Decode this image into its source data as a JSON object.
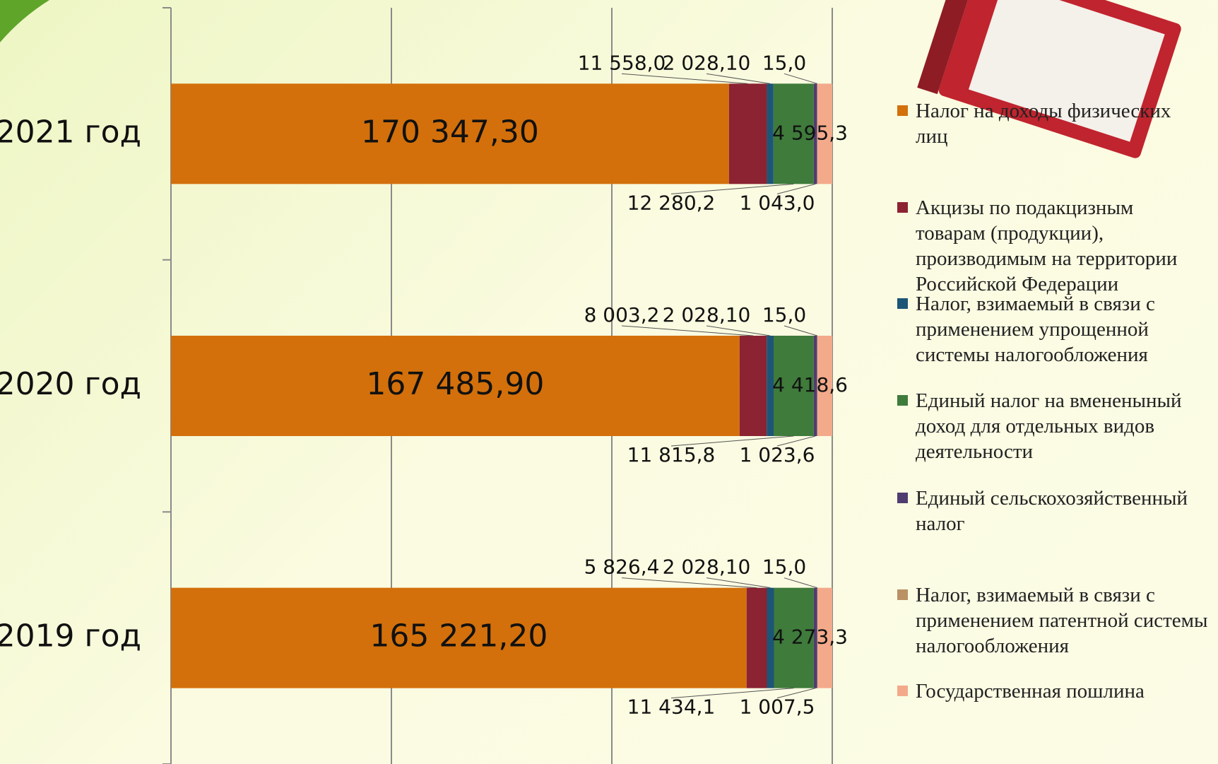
{
  "chart_data": {
    "type": "bar",
    "orientation": "horizontal",
    "stacked": "percent",
    "categories": [
      "2019 год",
      "2020 год",
      "2021 год"
    ],
    "series": [
      {
        "name": "Налог на доходы физических лиц",
        "color": "#d3700b",
        "values": [
          165221.2,
          167485.9,
          170347.3
        ],
        "value_labels": [
          "165 221,20",
          "167 485,90",
          "170 347,30"
        ]
      },
      {
        "name": "Акцизы по подакцизным товарам (продукции), производимым на территории Российской Федерации",
        "color": "#8b2332",
        "values": [
          5826.4,
          8003.2,
          11558
        ],
        "value_labels": [
          "5 826,4",
          "8 003,2",
          "11 558,0"
        ]
      },
      {
        "name": "Налог, взимаемый в связи с применением упрощенной системы налогообложения",
        "color": "#1d5577",
        "values": [
          2028.1,
          2028.1,
          2028.1
        ],
        "value_labels": [
          "2 028,10",
          "2 028,10",
          "2 028,10"
        ]
      },
      {
        "name": "Единый налог на вмененыный доход для отдельных видов деятельности",
        "color": "#3f7b3b",
        "values": [
          11434.1,
          11815.8,
          12280.2
        ],
        "value_labels": [
          "11 434,1",
          "11 815,8",
          "12 280,2"
        ]
      },
      {
        "name": "Единый сельскохозяйственный налог",
        "color": "#503d6f",
        "values": [
          1007.5,
          1023.6,
          1043
        ],
        "value_labels": [
          "1 007,5",
          "1 023,6",
          "1 043,0"
        ]
      },
      {
        "name": "Налог, взимаемый в связи с применением патентной системы налогообложения",
        "color": "#b99165",
        "values": [
          15,
          15,
          15
        ],
        "value_labels": [
          "15,0",
          "15,0",
          "15,0"
        ]
      },
      {
        "name": "Государственная пошлина",
        "color": "#f3aa8b",
        "values": [
          4273.3,
          4418.6,
          4595.3
        ],
        "value_labels": [
          "4 273,3",
          "4 418,6",
          "4 595,3"
        ]
      }
    ]
  }
}
